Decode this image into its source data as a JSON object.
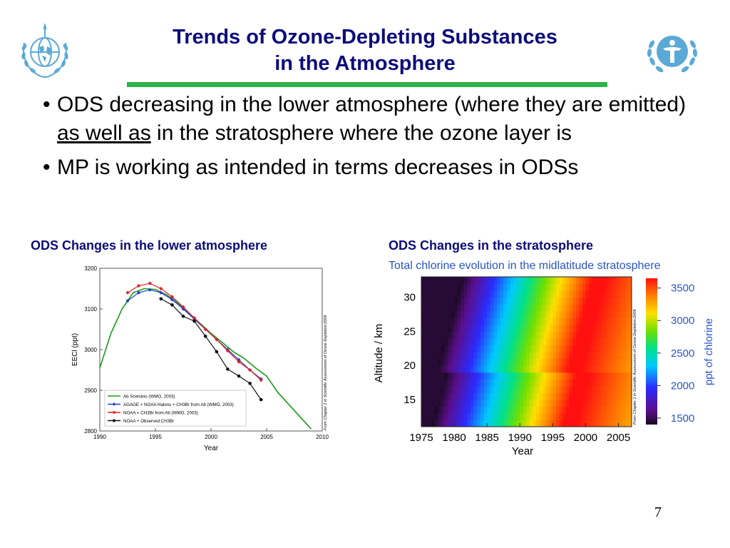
{
  "slide": {
    "title_line1": "Trends of Ozone-Depleting Substances",
    "title_line2": "in the Atmosphere",
    "bullet1_part1": "ODS decreasing in the lower atmosphere (where they are emitted) ",
    "bullet1_underlined": "as well as",
    "bullet1_part2": " in the stratosphere where the ozone layer is",
    "bullet2": "MP is working as intended in terms decreases in ODSs",
    "caption_left": "ODS Changes in the lower atmosphere",
    "caption_right": "ODS Changes in the stratosphere",
    "page_number": "7",
    "colors": {
      "title": "#0c0c7a",
      "rule": "#2db34a",
      "logo": "#5aa9d6"
    },
    "logos": [
      "wmo-emblem",
      "unep-emblem"
    ]
  },
  "chart_data": [
    {
      "type": "line",
      "ylabel": "EECl  (ppt)",
      "xlabel": "Year",
      "xlim": [
        1990,
        2010
      ],
      "ylim": [
        2800,
        3200
      ],
      "xticks": [
        "1990",
        "1995",
        "2000",
        "2005",
        "2010"
      ],
      "yticks": [
        "2800",
        "2900",
        "3000",
        "3100",
        "3200"
      ],
      "side_note": "From Chapter 1 in Scientific Assessment of Ozone Depletion:2006",
      "legend_position": "bottom-left",
      "series": [
        {
          "name": "Ab Scenario (WMO, 2003)",
          "color": "#1a9a1a",
          "marker": "none",
          "x": [
            1990,
            1991,
            1992,
            1993,
            1994,
            1995,
            1996,
            1997,
            1998,
            1999,
            2000,
            2001,
            2002,
            2003,
            2004,
            2005,
            2006,
            2007,
            2008,
            2009
          ],
          "y": [
            2955,
            3040,
            3100,
            3140,
            3150,
            3148,
            3135,
            3115,
            3090,
            3065,
            3040,
            3018,
            2995,
            2978,
            2955,
            2935,
            2895,
            2865,
            2835,
            2805
          ]
        },
        {
          "name": "AGAGE + NOAA Halons + CH3Br from Ab (WMO, 2003)",
          "color": "#1f3fd6",
          "marker": "diamond",
          "x": [
            1992.5,
            1993.5,
            1994.5,
            1995.5,
            1996.5,
            1997.5,
            1998.5,
            1999.5,
            2000.5,
            2001.5,
            2002.5,
            2003.5,
            2004.5
          ],
          "y": [
            3120,
            3140,
            3147,
            3140,
            3123,
            3100,
            3075,
            3050,
            3025,
            3000,
            2975,
            2950,
            2928
          ]
        },
        {
          "name": "NOAA + CH3Br from Ab (WMO, 2003)",
          "color": "#e02020",
          "marker": "diamond",
          "x": [
            1992.5,
            1993.5,
            1994.5,
            1995.5,
            1996.5,
            1997.5,
            1998.5,
            1999.5,
            2000.5,
            2001.5,
            2002.5,
            2003.5,
            2004.5
          ],
          "y": [
            3140,
            3157,
            3163,
            3150,
            3130,
            3105,
            3078,
            3050,
            3025,
            2997,
            2970,
            2950,
            2925
          ]
        },
        {
          "name": "NOAA + Observed CH3Br",
          "color": "#111111",
          "marker": "circle",
          "x": [
            1995.5,
            1996.5,
            1997.5,
            1998.5,
            1999.5,
            2000.5,
            2001.5,
            2002.5,
            2003.5,
            2004.5
          ],
          "y": [
            3125,
            3110,
            3082,
            3070,
            3033,
            2995,
            2952,
            2935,
            2917,
            2877
          ]
        }
      ]
    },
    {
      "type": "heatmap",
      "title": "Total chlorine evolution in the midlatitude stratosphere",
      "xlabel": "Year",
      "ylabel": "Altitude / km",
      "colorbar_label": "ppt of chlorine",
      "xlim": [
        1975,
        2007
      ],
      "ylim": [
        11,
        33
      ],
      "xticks": [
        "1975",
        "1980",
        "1985",
        "1990",
        "1995",
        "2000",
        "2005"
      ],
      "yticks": [
        "15",
        "20",
        "25",
        "30"
      ],
      "colorbar_ticks": [
        "1500",
        "2000",
        "2500",
        "3000",
        "3500"
      ],
      "color_range": [
        1400,
        3650
      ],
      "side_note": "From Chapter 1 in Scientific Assessment of Ozone Depletion:2006"
    }
  ]
}
